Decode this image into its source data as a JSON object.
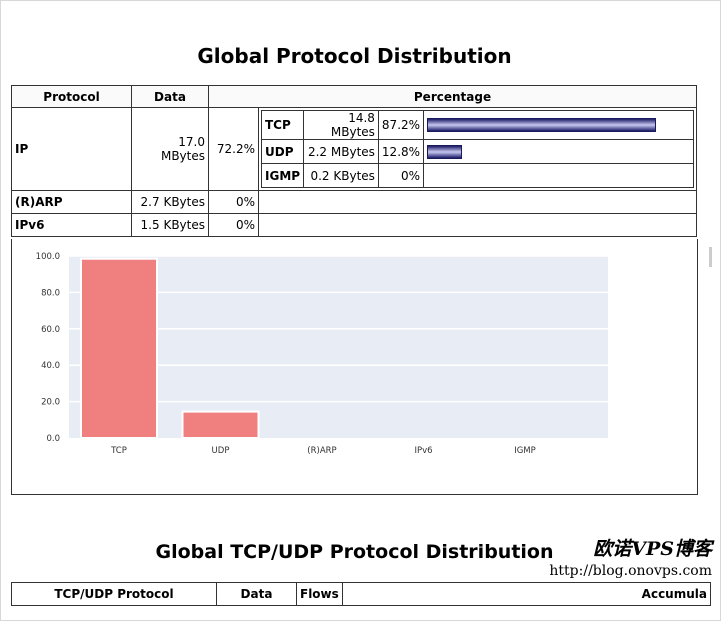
{
  "title": "Global Protocol Distribution",
  "table": {
    "headers": {
      "protocol": "Protocol",
      "data": "Data",
      "percentage": "Percentage"
    },
    "ip": {
      "protocol": "IP",
      "data": "17.0 MBytes",
      "percent": "72.2%",
      "sub": [
        {
          "protocol": "TCP",
          "data": "14.8 MBytes",
          "percent": "87.2%",
          "fraction": 0.872
        },
        {
          "protocol": "UDP",
          "data": "2.2 MBytes",
          "percent": "12.8%",
          "fraction": 0.128
        },
        {
          "protocol": "IGMP",
          "data": "0.2 KBytes",
          "percent": "0%",
          "fraction": 0
        }
      ]
    },
    "arp": {
      "protocol": "(R)ARP",
      "data": "2.7 KBytes",
      "percent": "0%"
    },
    "ipv6": {
      "protocol": "IPv6",
      "data": "1.5 KBytes",
      "percent": "0%"
    }
  },
  "chart_data": {
    "type": "bar",
    "categories": [
      "TCP",
      "UDP",
      "(R)ARP",
      "IPv6",
      "IGMP"
    ],
    "values": [
      98.5,
      14.5,
      0,
      0,
      0
    ],
    "ylim": [
      0,
      100
    ],
    "yticks": [
      "0.0",
      "20.0",
      "40.0",
      "60.0",
      "80.0",
      "100.0"
    ],
    "ytick_values": [
      0,
      20,
      40,
      60,
      80,
      100
    ],
    "grid": true,
    "bar_color": "#f08080",
    "plot_background": "#e8ecf4"
  },
  "title2": "Global TCP/UDP Protocol Distribution",
  "table2": {
    "headers": [
      "TCP/UDP Protocol",
      "Data",
      "Flows",
      "Accumula"
    ]
  },
  "watermark": {
    "cn": "欧诺VPS博客",
    "url": "http://blog.onovps.com"
  }
}
